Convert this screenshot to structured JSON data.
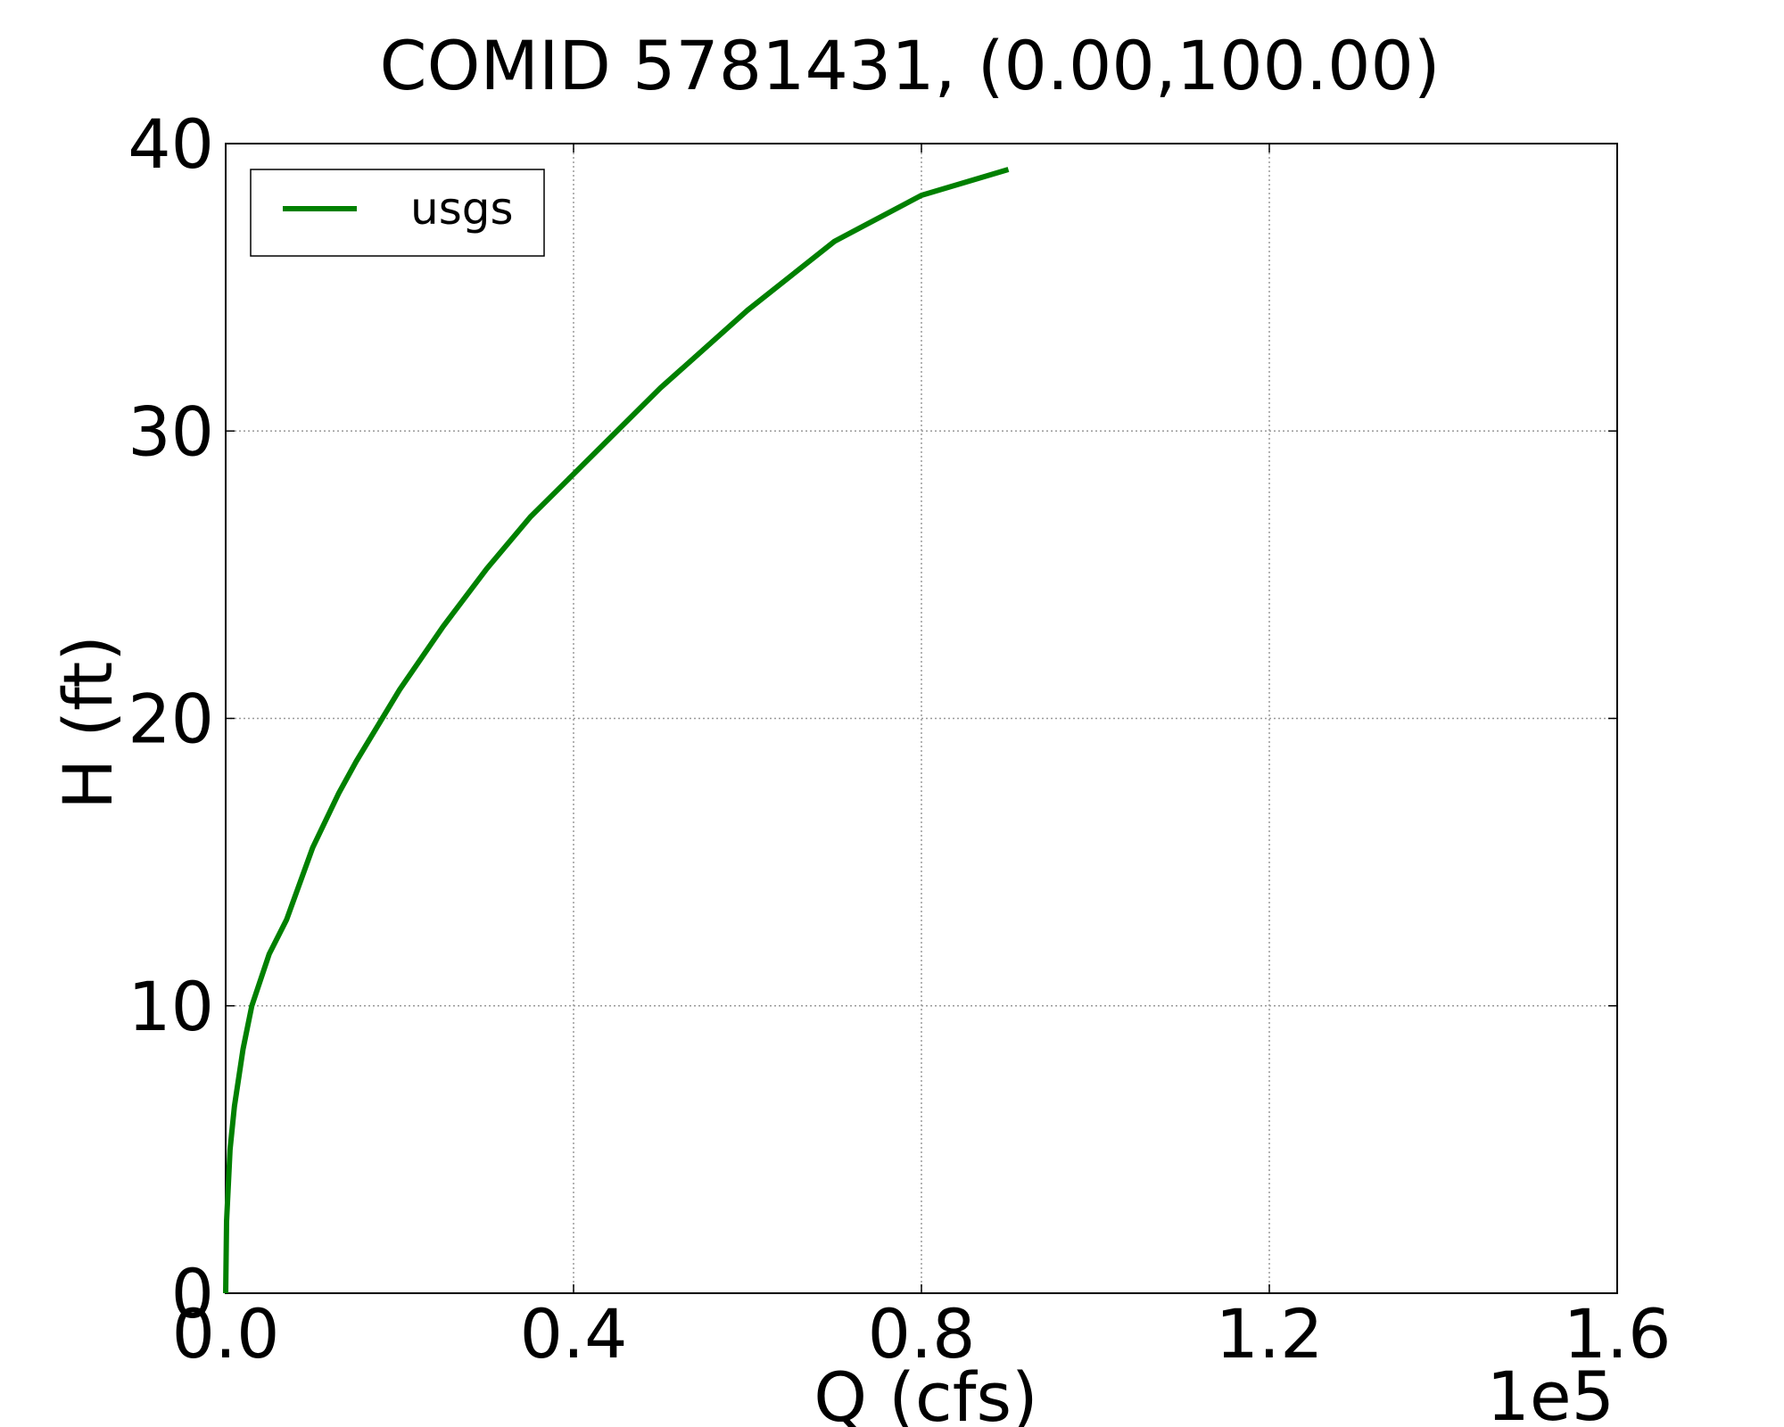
{
  "chart_data": {
    "type": "line",
    "title": "COMID 5781431, (0.00,100.00)",
    "xlabel": "Q (cfs)",
    "ylabel": "H (ft)",
    "x_multiplier_label": "1e5",
    "xlim": [
      0,
      1.6
    ],
    "ylim": [
      0,
      40
    ],
    "x_ticks": [
      0.0,
      0.4,
      0.8,
      1.2,
      1.6
    ],
    "x_tick_labels": [
      "0.0",
      "0.4",
      "0.8",
      "1.2",
      "1.6"
    ],
    "y_ticks": [
      0,
      10,
      20,
      30,
      40
    ],
    "y_tick_labels": [
      "0",
      "10",
      "20",
      "30",
      "40"
    ],
    "grid": true,
    "legend_position": "top-left",
    "series": [
      {
        "name": "usgs",
        "color": "#008000",
        "x": [
          0.0,
          0.001,
          0.005,
          0.01,
          0.02,
          0.03,
          0.05,
          0.07,
          0.1,
          0.13,
          0.15,
          0.2,
          0.25,
          0.3,
          0.35,
          0.4,
          0.5,
          0.6,
          0.7,
          0.8,
          0.9
        ],
        "y": [
          0.0,
          2.5,
          5.0,
          6.5,
          8.5,
          10.0,
          11.8,
          13.0,
          15.5,
          17.4,
          18.5,
          21.0,
          23.2,
          25.2,
          27.0,
          28.5,
          31.5,
          34.2,
          36.6,
          38.2,
          39.1
        ]
      }
    ]
  }
}
